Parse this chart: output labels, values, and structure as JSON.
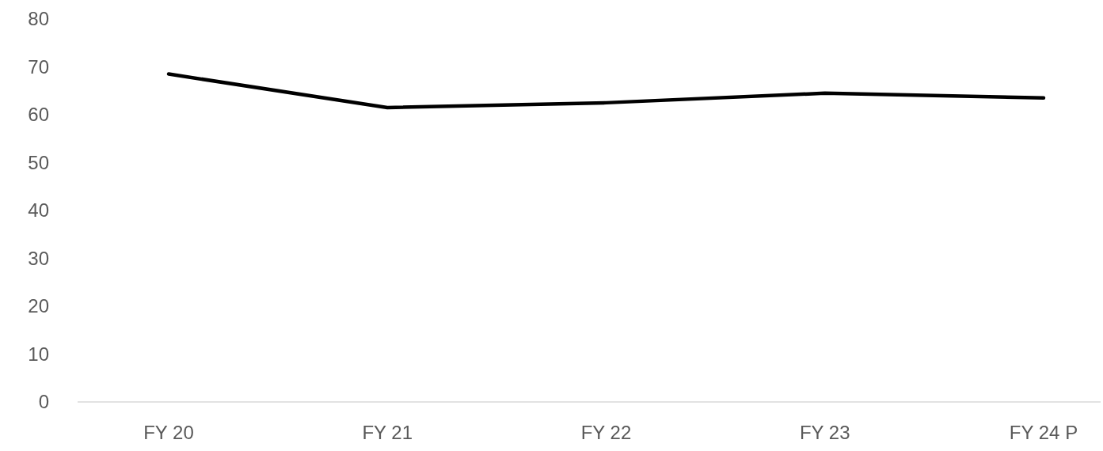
{
  "chart_data": {
    "type": "line",
    "categories": [
      "FY 20",
      "FY 21",
      "FY 22",
      "FY 23",
      "FY 24 P"
    ],
    "series": [
      {
        "color": "#000000",
        "values": [
          68.5,
          61.5,
          62.5,
          64.5,
          63.5
        ]
      }
    ],
    "ylim": [
      0,
      80
    ],
    "yticks": [
      0,
      10,
      20,
      30,
      40,
      50,
      60,
      70,
      80
    ],
    "grid": false,
    "marker": "none",
    "line_style": "solid"
  }
}
